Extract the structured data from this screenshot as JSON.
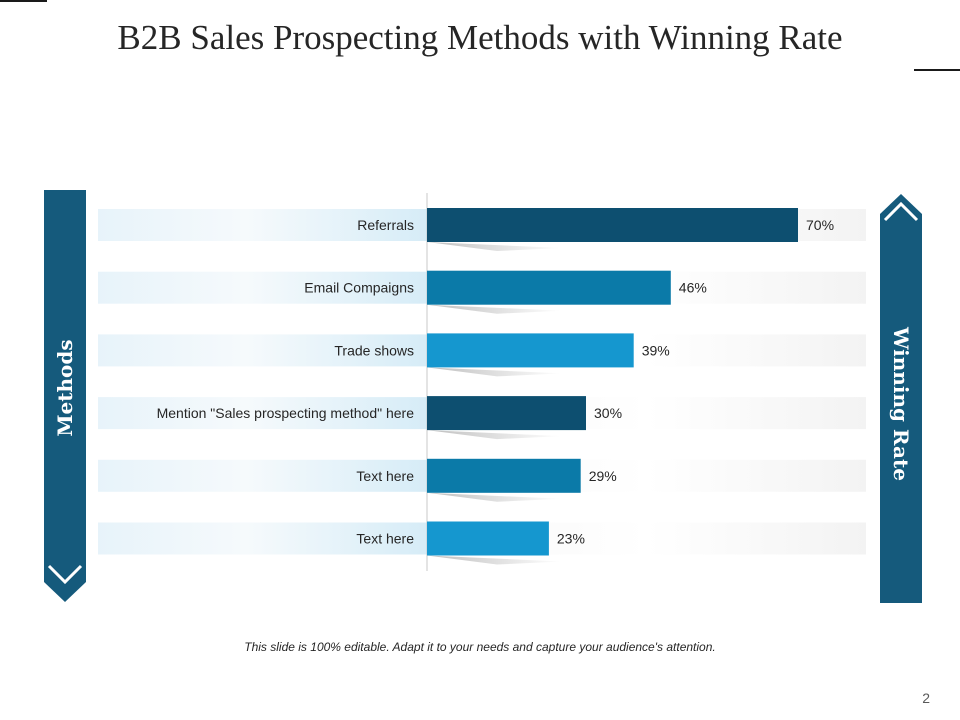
{
  "slide": {
    "title": "B2B Sales Prospecting Methods with Winning Rate",
    "footnote": "This slide is 100% editable. Adapt it to your needs and capture your audience's attention.",
    "page_number": "2"
  },
  "panels": {
    "left_label": "Methods",
    "right_label": "Winning Rate"
  },
  "colors": {
    "dark": "#0d4f70",
    "mid": "#0b7aa8",
    "light": "#1597cf",
    "panel": "#155a7c"
  },
  "chart_data": {
    "type": "bar",
    "orientation": "horizontal",
    "title": "B2B Sales Prospecting Methods with Winning Rate",
    "xlabel": "Winning Rate",
    "ylabel": "Methods",
    "xlim": [
      0,
      100
    ],
    "categories": [
      "Referrals",
      "Email Compaigns",
      "Trade shows",
      "Mention \"Sales prospecting method\" here",
      "Text here",
      "Text here"
    ],
    "values": [
      70,
      46,
      39,
      30,
      29,
      23
    ],
    "value_labels": [
      "70%",
      "46%",
      "39%",
      "30%",
      "29%",
      "23%"
    ],
    "bar_colors": [
      "#0d4f70",
      "#0b7aa8",
      "#1597cf",
      "#0d4f70",
      "#0b7aa8",
      "#1597cf"
    ]
  }
}
